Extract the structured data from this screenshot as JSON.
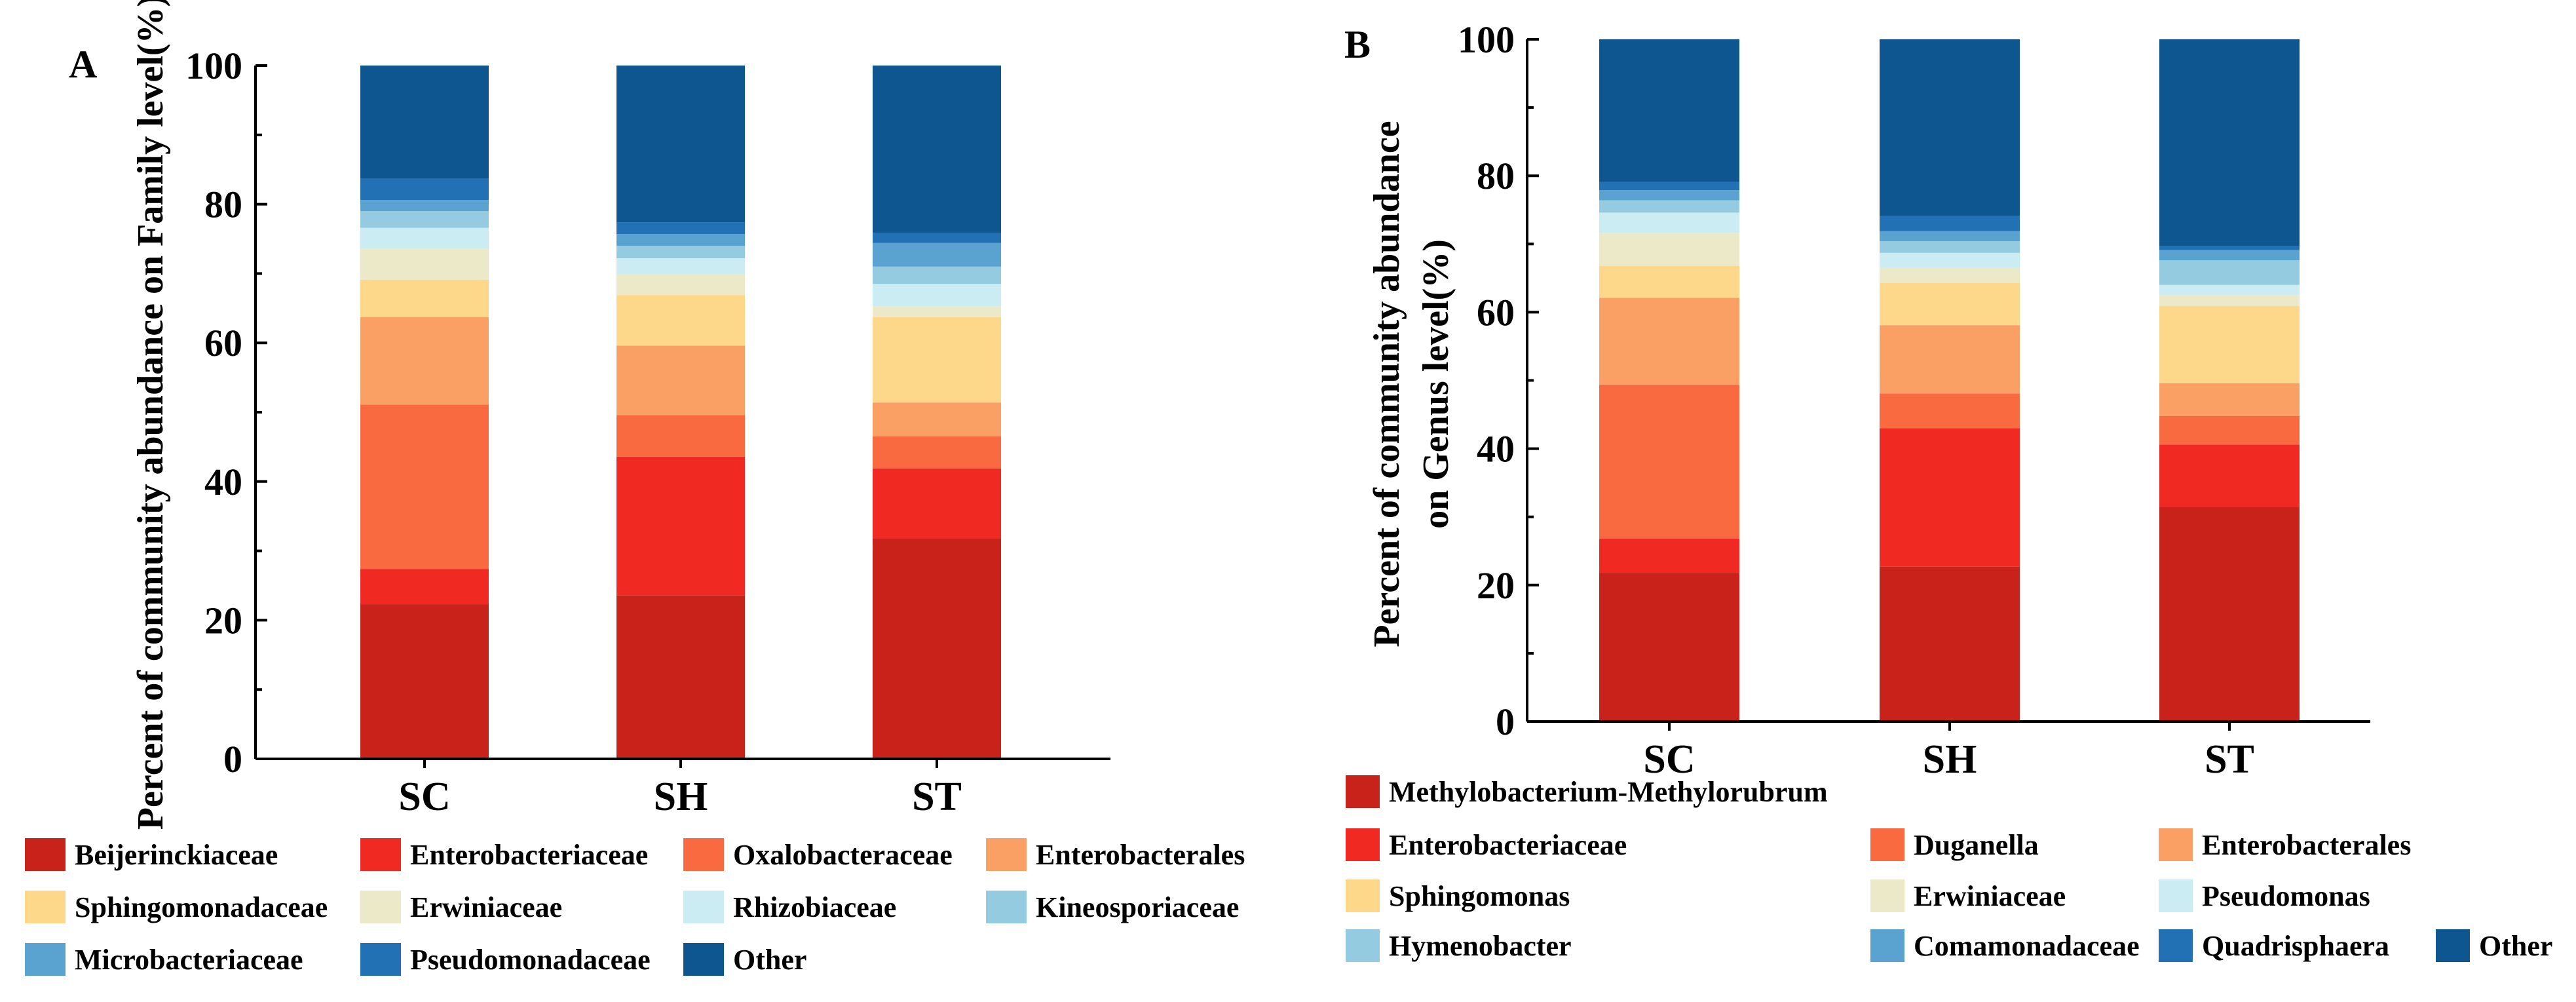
{
  "colors": {
    "Beijerinckiaceae": "#c9221b",
    "Enterobacteriaceae": "#f02a23",
    "Oxalobacteraceae": "#fa6a41",
    "Enterobacterales": "#fba064",
    "Sphingomonadaceae": "#fdd88a",
    "Erwiniaceae": "#ece9c8",
    "Rhizobiaceae": "#ccecf3",
    "Kineosporiaceae": "#94cbe0",
    "Microbacteriaceae": "#5aa3d1",
    "Pseudomonadaceae": "#2271b4",
    "Other": "#0d5690",
    "Methylobacterium-Methylorubrum": "#c9221b",
    "Duganella": "#fa6a41",
    "Sphingomonas": "#fdd88a",
    "Pseudomonas": "#ccecf3",
    "Hymenobacter": "#94cbe0",
    "Comamonadaceae": "#5aa3d1",
    "Quadrisphaera": "#2271b4"
  },
  "chart_data": [
    {
      "panel": "A",
      "type": "bar",
      "stacked": true,
      "ylabel": "Percent of community abundance on Family level(%)",
      "ylim": [
        0,
        100
      ],
      "yticks": [
        "0",
        "20",
        "40",
        "60",
        "80",
        "100"
      ],
      "categories": [
        "SC",
        "SH",
        "ST"
      ],
      "series": [
        {
          "name": "Beijerinckiaceae",
          "values": [
            22.3,
            23.6,
            31.8
          ]
        },
        {
          "name": "Enterobacteriaceae",
          "values": [
            5.1,
            20.0,
            10.1
          ]
        },
        {
          "name": "Oxalobacteraceae",
          "values": [
            23.7,
            6.0,
            4.6
          ]
        },
        {
          "name": "Enterobacterales",
          "values": [
            12.6,
            10.0,
            4.9
          ]
        },
        {
          "name": "Sphingomonadaceae",
          "values": [
            5.4,
            7.3,
            12.3
          ]
        },
        {
          "name": "Erwiniaceae",
          "values": [
            4.5,
            3.0,
            1.6
          ]
        },
        {
          "name": "Rhizobiaceae",
          "values": [
            3.0,
            2.3,
            3.2
          ]
        },
        {
          "name": "Kineosporiaceae",
          "values": [
            2.4,
            1.8,
            2.5
          ]
        },
        {
          "name": "Microbacteriaceae",
          "values": [
            1.6,
            1.7,
            3.4
          ]
        },
        {
          "name": "Pseudomonadaceae",
          "values": [
            3.1,
            1.7,
            1.5
          ]
        },
        {
          "name": "Other",
          "values": [
            16.3,
            22.6,
            24.1
          ]
        }
      ]
    },
    {
      "panel": "B",
      "type": "bar",
      "stacked": true,
      "ylabel": "Percent of community abundance on Genus level(%)",
      "ylim": [
        0,
        100
      ],
      "yticks": [
        "0",
        "20",
        "40",
        "60",
        "80",
        "100"
      ],
      "categories": [
        "SC",
        "SH",
        "ST"
      ],
      "series": [
        {
          "name": "Methylobacterium-Methylorubrum",
          "values": [
            21.8,
            22.7,
            31.5
          ]
        },
        {
          "name": "Enterobacteriaceae",
          "values": [
            5.0,
            20.3,
            9.1
          ]
        },
        {
          "name": "Duganella",
          "values": [
            22.6,
            5.1,
            4.2
          ]
        },
        {
          "name": "Enterobacterales",
          "values": [
            12.7,
            10.0,
            4.8
          ]
        },
        {
          "name": "Sphingomonas",
          "values": [
            4.7,
            6.2,
            11.3
          ]
        },
        {
          "name": "Erwiniaceae",
          "values": [
            4.8,
            2.2,
            1.6
          ]
        },
        {
          "name": "Pseudomonas",
          "values": [
            3.0,
            2.2,
            1.5
          ]
        },
        {
          "name": "Hymenobacter",
          "values": [
            1.8,
            1.7,
            3.6
          ]
        },
        {
          "name": "Comamonadaceae",
          "values": [
            1.5,
            1.5,
            1.5
          ]
        },
        {
          "name": "Quadrisphaera",
          "values": [
            1.2,
            2.2,
            0.6
          ]
        },
        {
          "name": "Other",
          "values": [
            20.9,
            25.9,
            30.3
          ]
        }
      ]
    }
  ],
  "legendA": [
    [
      "Beijerinckiaceae",
      "Enterobacteriaceae",
      "Oxalobacteraceae",
      "Enterobacterales"
    ],
    [
      "Sphingomonadaceae",
      "Erwiniaceae",
      "Rhizobiaceae",
      "Kineosporiaceae"
    ],
    [
      "Microbacteriaceae",
      "Pseudomonadaceae",
      "Other"
    ]
  ],
  "legendB": [
    [
      "Methylobacterium-Methylorubrum"
    ],
    [
      "Enterobacteriaceae",
      "Duganella",
      "Enterobacterales"
    ],
    [
      "Sphingomonas",
      "Erwiniaceae",
      "Pseudomonas"
    ],
    [
      "Hymenobacter",
      "Comamonadaceae",
      "Quadrisphaera",
      "Other"
    ]
  ]
}
